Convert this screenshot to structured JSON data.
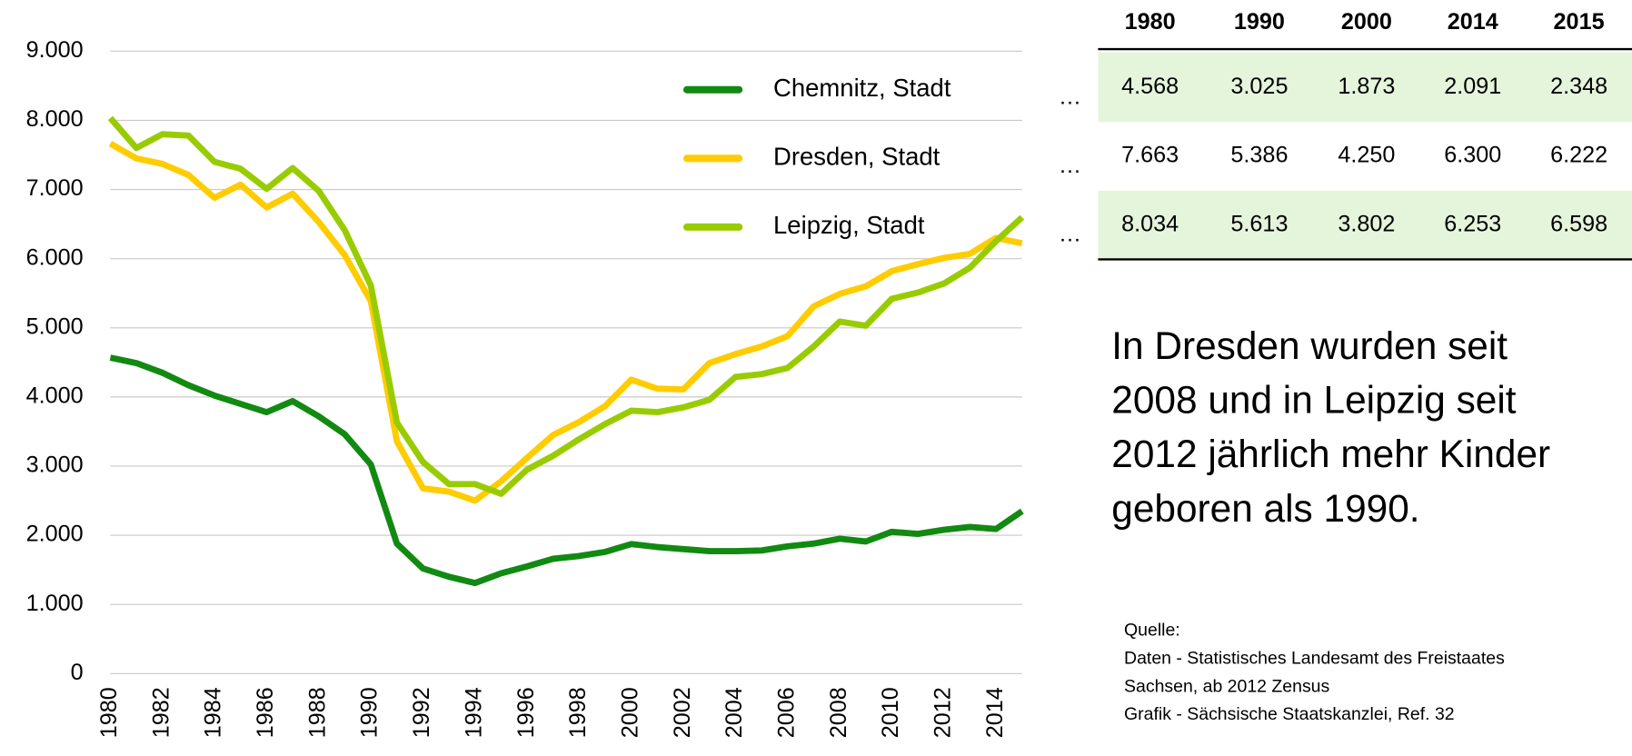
{
  "chart_data": {
    "type": "line",
    "x": [
      1980,
      1981,
      1982,
      1983,
      1984,
      1985,
      1986,
      1987,
      1988,
      1989,
      1990,
      1991,
      1992,
      1993,
      1994,
      1995,
      1996,
      1997,
      1998,
      1999,
      2000,
      2001,
      2002,
      2003,
      2004,
      2005,
      2006,
      2007,
      2008,
      2009,
      2010,
      2011,
      2012,
      2013,
      2014,
      2015
    ],
    "series": [
      {
        "name": "Chemnitz, Stadt",
        "color": "#128a12",
        "values": [
          4568,
          4490,
          4350,
          4170,
          4020,
          3900,
          3780,
          3940,
          3720,
          3460,
          3025,
          1880,
          1520,
          1400,
          1310,
          1450,
          1550,
          1660,
          1700,
          1760,
          1873,
          1830,
          1800,
          1770,
          1770,
          1780,
          1840,
          1880,
          1950,
          1910,
          2050,
          2020,
          2080,
          2120,
          2091,
          2348
        ]
      },
      {
        "name": "Dresden, Stadt",
        "color": "#ffcc00",
        "values": [
          7663,
          7450,
          7370,
          7210,
          6880,
          7070,
          6740,
          6940,
          6530,
          6050,
          5386,
          3360,
          2680,
          2630,
          2500,
          2780,
          3120,
          3450,
          3640,
          3870,
          4250,
          4120,
          4110,
          4490,
          4620,
          4730,
          4880,
          5310,
          5490,
          5600,
          5820,
          5920,
          6010,
          6070,
          6300,
          6222
        ]
      },
      {
        "name": "Leipzig, Stadt",
        "color": "#99cc00",
        "values": [
          8034,
          7600,
          7800,
          7780,
          7400,
          7300,
          7010,
          7310,
          6980,
          6410,
          5613,
          3630,
          3060,
          2740,
          2740,
          2600,
          2950,
          3150,
          3390,
          3610,
          3802,
          3780,
          3850,
          3960,
          4290,
          4330,
          4420,
          4730,
          5090,
          5030,
          5420,
          5510,
          5640,
          5870,
          6253,
          6598
        ]
      }
    ],
    "xlim": [
      1980,
      2015
    ],
    "xticks": [
      1980,
      1982,
      1984,
      1986,
      1988,
      1990,
      1992,
      1994,
      1996,
      1998,
      2000,
      2002,
      2004,
      2006,
      2008,
      2010,
      2012,
      2014
    ],
    "ylim": [
      0,
      9000
    ],
    "yticks": [
      0,
      {
        "value": 1000,
        "label": "1.000"
      },
      {
        "value": 2000,
        "label": "2.000"
      },
      {
        "value": 3000,
        "label": "3.000"
      },
      {
        "value": 4000,
        "label": "4.000"
      },
      {
        "value": 5000,
        "label": "5.000"
      },
      {
        "value": 6000,
        "label": "6.000"
      },
      {
        "value": 7000,
        "label": "7.000"
      },
      {
        "value": 8000,
        "label": "8.000"
      },
      {
        "value": 9000,
        "label": "9.000"
      }
    ],
    "grid": true
  },
  "table": {
    "header": [
      "1980",
      "1990",
      "2000",
      "2014",
      "2015"
    ],
    "ellipsis": "…",
    "rows": [
      [
        "4.568",
        "3.025",
        "1.873",
        "2.091",
        "2.348"
      ],
      [
        "7.663",
        "5.386",
        "4.250",
        "6.300",
        "6.222"
      ],
      [
        "8.034",
        "5.613",
        "3.802",
        "6.253",
        "6.598"
      ]
    ]
  },
  "note": [
    "In Dresden wurden seit",
    "2008 und in Leipzig seit",
    "2012 jährlich mehr Kinder",
    "geboren als 1990."
  ],
  "source": [
    "Quelle:",
    "Daten - Statistisches Landesamt des Freistaates",
    "Sachsen, ab 2012 Zensus",
    "Grafik - Sächsische Staatskanzlei, Ref. 32"
  ]
}
